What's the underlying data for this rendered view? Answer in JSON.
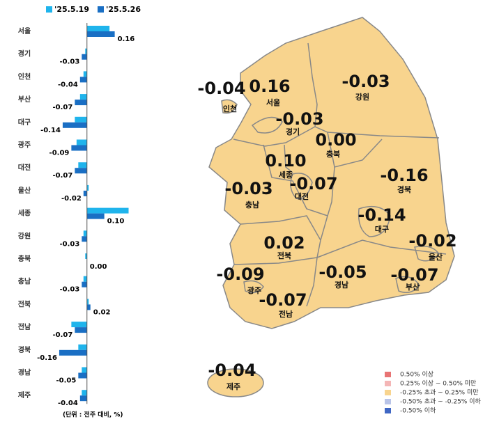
{
  "chart_data": [
    {
      "type": "hbar",
      "categories": [
        "서울",
        "경기",
        "인천",
        "부산",
        "대구",
        "광주",
        "대전",
        "울산",
        "세종",
        "강원",
        "충북",
        "충남",
        "전북",
        "전남",
        "경북",
        "경남",
        "제주"
      ],
      "series": [
        {
          "name": "'25.5.19",
          "color": "#1fb4ec",
          "values": [
            0.13,
            -0.01,
            -0.02,
            -0.04,
            -0.07,
            -0.06,
            -0.05,
            0.01,
            0.24,
            -0.02,
            -0.01,
            -0.02,
            0.01,
            -0.09,
            -0.05,
            -0.03,
            -0.03
          ]
        },
        {
          "name": "'25.5.26",
          "color": "#1a6fc4",
          "values": [
            0.16,
            -0.03,
            -0.04,
            -0.07,
            -0.14,
            -0.09,
            -0.07,
            -0.02,
            0.1,
            -0.03,
            0,
            -0.03,
            0.02,
            -0.07,
            -0.16,
            -0.05,
            -0.04
          ],
          "value_labels": [
            "0.16",
            "-0.03",
            "-0.04",
            "-0.07",
            "-0.14",
            "-0.09",
            "-0.07",
            "-0.02",
            "0.10",
            "-0.03",
            "0.00",
            "-0.03",
            "0.02",
            "-0.07",
            "-0.16",
            "-0.05",
            "-0.04"
          ]
        }
      ],
      "xlim": [
        -0.2,
        0.25
      ],
      "note": "(단위 : 전주 대비, %)"
    },
    {
      "type": "map",
      "regions": [
        {
          "name": "서울",
          "value": 0.16,
          "value_label": "0.16"
        },
        {
          "name": "경기",
          "value": -0.03,
          "value_label": "-0.03"
        },
        {
          "name": "인천",
          "value": -0.04,
          "value_label": "-0.04"
        },
        {
          "name": "부산",
          "value": -0.07,
          "value_label": "-0.07"
        },
        {
          "name": "대구",
          "value": -0.14,
          "value_label": "-0.14"
        },
        {
          "name": "광주",
          "value": -0.09,
          "value_label": "-0.09"
        },
        {
          "name": "대전",
          "value": -0.07,
          "value_label": "-0.07"
        },
        {
          "name": "울산",
          "value": -0.02,
          "value_label": "-0.02"
        },
        {
          "name": "세종",
          "value": 0.1,
          "value_label": "0.10"
        },
        {
          "name": "강원",
          "value": -0.03,
          "value_label": "-0.03"
        },
        {
          "name": "충북",
          "value": 0,
          "value_label": "0.00"
        },
        {
          "name": "충남",
          "value": -0.03,
          "value_label": "-0.03"
        },
        {
          "name": "전북",
          "value": 0.02,
          "value_label": "0.02"
        },
        {
          "name": "전남",
          "value": -0.07,
          "value_label": "-0.07"
        },
        {
          "name": "경북",
          "value": -0.16,
          "value_label": "-0.16"
        },
        {
          "name": "경남",
          "value": -0.05,
          "value_label": "-0.05"
        },
        {
          "name": "제주",
          "value": -0.04,
          "value_label": "-0.04"
        }
      ],
      "fill": "#f8d48e",
      "legend": [
        {
          "label": "0.50% 이상",
          "color": "#e87474"
        },
        {
          "label": "0.25% 이상 ~ 0.50% 미만",
          "color": "#f4b6b6"
        },
        {
          "label": "-0.25% 초과 ~ 0.25% 미만",
          "color": "#f8d48e"
        },
        {
          "label": "-0.50% 초과 ~ -0.25% 이하",
          "color": "#b9c4e8"
        },
        {
          "label": "-0.50% 이하",
          "color": "#3f67c4"
        }
      ]
    }
  ]
}
